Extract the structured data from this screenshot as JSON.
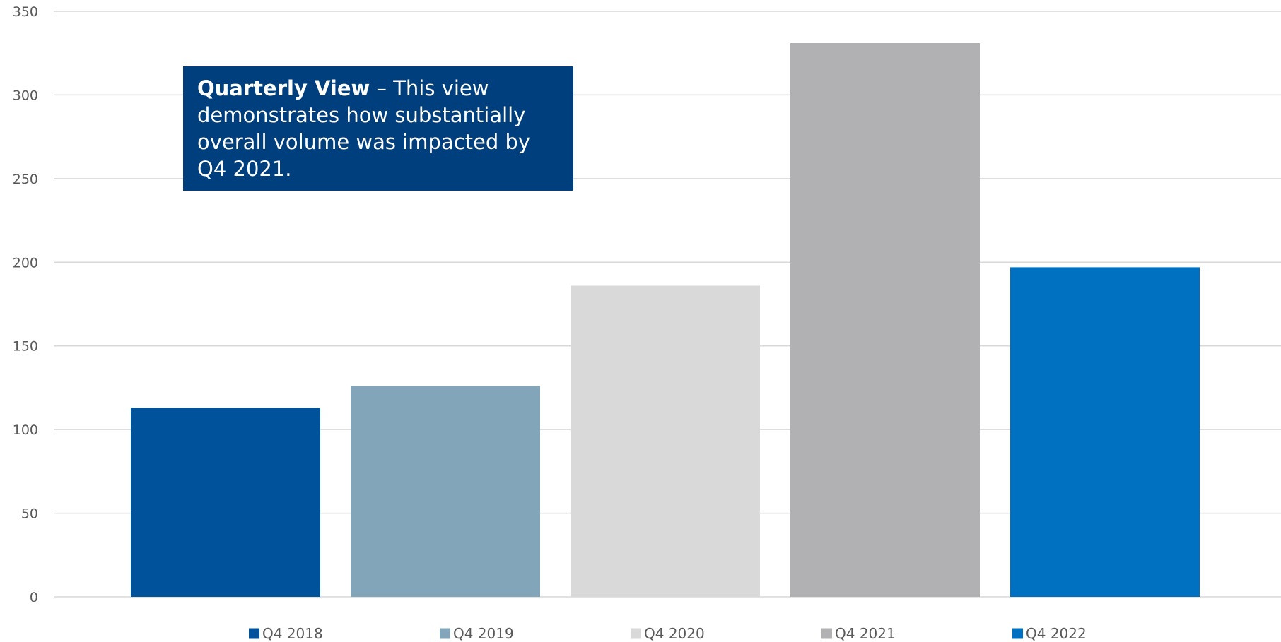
{
  "chart_data": {
    "type": "bar",
    "title": "",
    "xlabel": "",
    "ylabel": "",
    "ylim": [
      0,
      350
    ],
    "yticks": [
      0,
      50,
      100,
      150,
      200,
      250,
      300,
      350
    ],
    "grid": true,
    "legend_position": "bottom",
    "categories": [
      "Q4 2018",
      "Q4 2019",
      "Q4 2020",
      "Q4 2021",
      "Q4 2022"
    ],
    "values": [
      113,
      126,
      186,
      331,
      197
    ],
    "colors": [
      "#00539b",
      "#82a5b9",
      "#d9d9d9",
      "#b1b1b3",
      "#0071c1"
    ],
    "annotation": {
      "bold": "Quarterly View",
      "text": " – This view demonstrates how substantially overall volume was impacted by Q4 2021.",
      "background": "#003f7d"
    }
  }
}
